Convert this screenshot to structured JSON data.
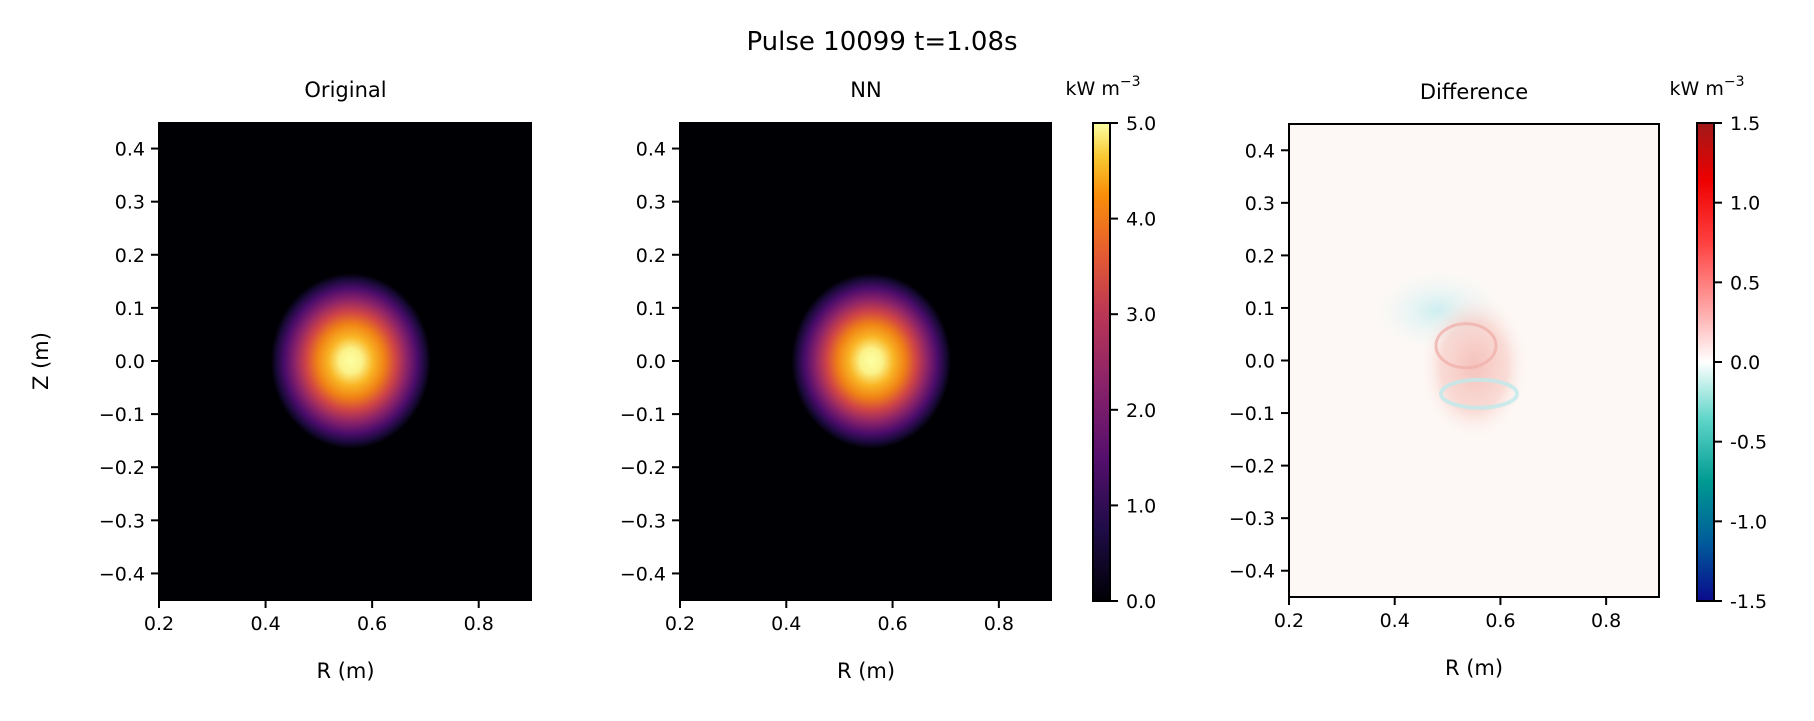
{
  "chart_data": {
    "type": "heatmap",
    "title": "Pulse 10099 t=1.08s",
    "panels": [
      {
        "title": "Original",
        "xlabel": "R (m)",
        "ylabel": "Z (m)",
        "xlim": [
          0.2,
          0.9
        ],
        "ylim": [
          -0.45,
          0.45
        ],
        "xticks": [
          "0.2",
          "0.4",
          "0.6",
          "0.8"
        ],
        "yticks": [
          "0.4",
          "0.3",
          "0.2",
          "0.1",
          "0.0",
          "−0.1",
          "−0.2",
          "−0.3",
          "−0.4"
        ],
        "colormap": "inferno",
        "feature": {
          "center_r": 0.56,
          "center_z": 0.0,
          "peak": 5.0,
          "sigma_r": 0.05,
          "sigma_z": 0.075
        }
      },
      {
        "title": "NN",
        "xlabel": "R (m)",
        "ylabel": "",
        "xlim": [
          0.2,
          0.9
        ],
        "ylim": [
          -0.45,
          0.45
        ],
        "xticks": [
          "0.2",
          "0.4",
          "0.6",
          "0.8"
        ],
        "yticks": [
          "0.4",
          "0.3",
          "0.2",
          "0.1",
          "0.0",
          "−0.1",
          "−0.2",
          "−0.3",
          "−0.4"
        ],
        "colormap": "inferno",
        "feature": {
          "center_r": 0.56,
          "center_z": 0.0,
          "peak": 5.0,
          "sigma_r": 0.05,
          "sigma_z": 0.075
        }
      },
      {
        "title": "Difference",
        "xlabel": "R (m)",
        "ylabel": "",
        "xlim": [
          0.2,
          0.9
        ],
        "ylim": [
          -0.45,
          0.45
        ],
        "xticks": [
          "0.2",
          "0.4",
          "0.6",
          "0.8"
        ],
        "yticks": [
          "0.4",
          "0.3",
          "0.2",
          "0.1",
          "0.0",
          "−0.1",
          "−0.2",
          "−0.3",
          "−0.4"
        ],
        "colormap": "diverging blue-teal-white-red",
        "feature": {
          "center_r": 0.55,
          "center_z": -0.01,
          "amplitude": 0.15
        }
      }
    ],
    "colorbars": [
      {
        "label": "kW m",
        "label_exp": "−3",
        "range": [
          0.0,
          5.0
        ],
        "ticks": [
          "5.0",
          "4.0",
          "3.0",
          "2.0",
          "1.0",
          "0.0"
        ],
        "colormap": "inferno"
      },
      {
        "label": "kW m",
        "label_exp": "−3",
        "range": [
          -1.5,
          1.5
        ],
        "ticks": [
          "1.5",
          "1.0",
          "0.5",
          "0.0",
          "-0.5",
          "-1.0",
          "-1.5"
        ],
        "colormap": "diverging blue-teal-white-red"
      }
    ]
  }
}
